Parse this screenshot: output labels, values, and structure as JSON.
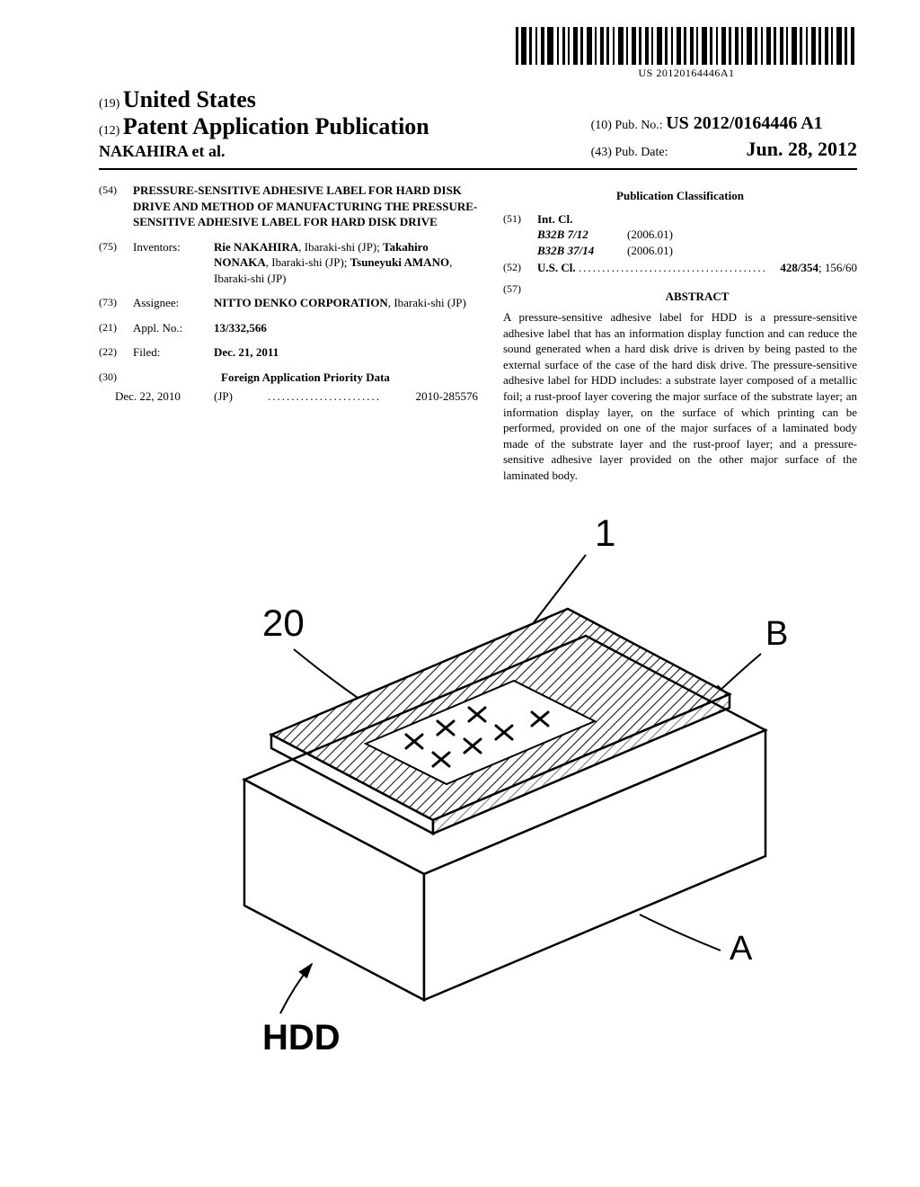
{
  "barcode_text": "US 20120164446A1",
  "header": {
    "field19_num": "(19)",
    "country": "United States",
    "field12_num": "(12)",
    "pub_title": "Patent Application Publication",
    "authors": "NAKAHIRA et al.",
    "field10_num": "(10)",
    "pubno_label": "Pub. No.:",
    "pubno_value": "US 2012/0164446 A1",
    "field43_num": "(43)",
    "pubdate_label": "Pub. Date:",
    "pubdate_value": "Jun. 28, 2012"
  },
  "left": {
    "f54_num": "(54)",
    "title": "PRESSURE-SENSITIVE ADHESIVE LABEL FOR HARD DISK DRIVE AND METHOD OF MANUFACTURING THE PRESSURE-SENSITIVE ADHESIVE LABEL FOR HARD DISK DRIVE",
    "f75_num": "(75)",
    "inventors_label": "Inventors:",
    "inventors_html": "<span class=\"bold\">Rie NAKAHIRA</span>, Ibaraki-shi (JP); <span class=\"bold\">Takahiro NONAKA</span>, Ibaraki-shi (JP); <span class=\"bold\">Tsuneyuki AMANO</span>, Ibaraki-shi (JP)",
    "f73_num": "(73)",
    "assignee_label": "Assignee:",
    "assignee_html": "<span class=\"bold\">NITTO DENKO CORPORATION</span>, Ibaraki-shi (JP)",
    "f21_num": "(21)",
    "applno_label": "Appl. No.:",
    "applno_value": "13/332,566",
    "f22_num": "(22)",
    "filed_label": "Filed:",
    "filed_value": "Dec. 21, 2011",
    "f30_num": "(30)",
    "priority_head": "Foreign Application Priority Data",
    "priority": {
      "date": "Dec. 22, 2010",
      "cc": "(JP)",
      "num": "2010-285576"
    }
  },
  "right": {
    "pubclass_head": "Publication Classification",
    "f51_num": "(51)",
    "intcl_label": "Int. Cl.",
    "intcl": [
      {
        "code": "B32B  7/12",
        "ed": "(2006.01)"
      },
      {
        "code": "B32B 37/14",
        "ed": "(2006.01)"
      }
    ],
    "f52_num": "(52)",
    "uscl_label": "U.S. Cl.",
    "uscl_value_html": "<span class=\"bold\">428/354</span>; 156/60",
    "f57_num": "(57)",
    "abstract_head": "ABSTRACT",
    "abstract": "A pressure-sensitive adhesive label for HDD is a pressure-sensitive adhesive label that has an information display function and can reduce the sound generated when a hard disk drive is driven by being pasted to the external surface of the case of the hard disk drive. The pressure-sensitive adhesive label for HDD includes: a substrate layer composed of a metallic foil; a rust-proof layer covering the major surface of the substrate layer; an information display layer, on the surface of which printing can be performed, provided on one of the major surfaces of a laminated body made of the substrate layer and the rust-proof layer; and a pressure-sensitive adhesive layer provided on the other major surface of the laminated body."
  },
  "figure": {
    "labels": {
      "one": "1",
      "twenty": "20",
      "B": "B",
      "A": "A",
      "HDD": "HDD"
    }
  }
}
